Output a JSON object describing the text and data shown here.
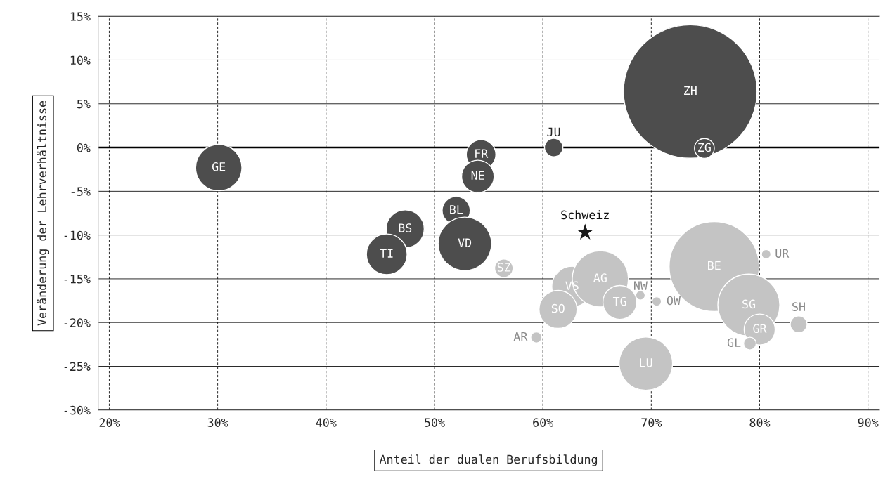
{
  "chart_data": {
    "type": "bubble",
    "xlabel": "Anteil der dualen Berufsbildung",
    "ylabel": "Veränderung der Lehrverhältnisse",
    "xlim": [
      19,
      91
    ],
    "ylim": [
      -30,
      15
    ],
    "xticks": [
      {
        "value": 20,
        "label": "20%"
      },
      {
        "value": 30,
        "label": "30%"
      },
      {
        "value": 40,
        "label": "40%"
      },
      {
        "value": 50,
        "label": "50%"
      },
      {
        "value": 60,
        "label": "60%"
      },
      {
        "value": 70,
        "label": "70%"
      },
      {
        "value": 80,
        "label": "80%"
      },
      {
        "value": 90,
        "label": "90%"
      }
    ],
    "yticks": [
      {
        "value": -30,
        "label": "-30%"
      },
      {
        "value": -25,
        "label": "-25%"
      },
      {
        "value": -20,
        "label": "-20%"
      },
      {
        "value": -15,
        "label": "-15%"
      },
      {
        "value": -10,
        "label": "-10%"
      },
      {
        "value": -5,
        "label": "-5%"
      },
      {
        "value": 0,
        "label": "0%"
      },
      {
        "value": 5,
        "label": "5%"
      },
      {
        "value": 10,
        "label": "10%"
      },
      {
        "value": 15,
        "label": "15%"
      }
    ],
    "grid": true,
    "ref_lines": [
      {
        "axis": "y",
        "value": 0,
        "color": "#000000"
      }
    ],
    "series": [
      {
        "color": "#4d4d4d",
        "x": [
          30.1,
          54.3,
          54.0,
          61.0,
          73.6,
          74.9,
          52.0,
          47.3,
          45.6,
          52.8
        ],
        "values": [
          -2.3,
          -0.8,
          -3.3,
          0.0,
          6.4,
          -0.1,
          -7.2,
          -9.3,
          -12.2,
          -11.0
        ],
        "sizes": [
          0.12,
          0.049,
          0.059,
          0.019,
          1,
          0.022,
          0.044,
          0.081,
          0.093,
          0.16
        ]
      },
      {
        "color": "#c4c4c4",
        "x": [
          56.4,
          62.7,
          65.3,
          69.0,
          70.5,
          67.1,
          61.4,
          59.4,
          69.5,
          75.8,
          80.6,
          79.0,
          80.0,
          83.6,
          79.1
        ],
        "values": [
          -13.8,
          -15.9,
          -15.0,
          -16.9,
          -17.6,
          -17.7,
          -18.5,
          -21.7,
          -24.7,
          -13.6,
          -12.2,
          -18.0,
          -20.8,
          -20.2,
          -22.4
        ],
        "sizes": [
          0.019,
          0.093,
          0.177,
          0.005,
          0.005,
          0.064,
          0.081,
          0.007,
          0.16,
          0.454,
          0.005,
          0.215,
          0.054,
          0.016,
          0.009
        ]
      },
      {
        "type": "scatter",
        "marker": "star",
        "color": "#1a1a1a",
        "x": [
          63.9
        ],
        "values": [
          -9.7
        ]
      }
    ],
    "annotations": [
      {
        "text": "GE",
        "x": 30.1,
        "y": -2.3
      },
      {
        "text": "FR",
        "x": 54.3,
        "y": -0.8
      },
      {
        "text": "NE",
        "x": 54.0,
        "y": -3.3
      },
      {
        "text": "JU",
        "x": 61.0,
        "y": 0.0
      },
      {
        "text": "ZH",
        "x": 73.6,
        "y": 6.4
      },
      {
        "text": "ZG",
        "x": 74.9,
        "y": -0.1
      },
      {
        "text": "BL",
        "x": 52.0,
        "y": -7.2
      },
      {
        "text": "BS",
        "x": 47.3,
        "y": -9.3
      },
      {
        "text": "TI",
        "x": 45.6,
        "y": -12.2
      },
      {
        "text": "VD",
        "x": 52.8,
        "y": -11.0
      },
      {
        "text": "SZ",
        "x": 56.4,
        "y": -13.8
      },
      {
        "text": "VS",
        "x": 62.7,
        "y": -15.9
      },
      {
        "text": "AG",
        "x": 65.3,
        "y": -15.0
      },
      {
        "text": "NW",
        "x": 69.0,
        "y": -16.9
      },
      {
        "text": "OW",
        "x": 70.5,
        "y": -17.6
      },
      {
        "text": "TG",
        "x": 67.1,
        "y": -17.7
      },
      {
        "text": "SO",
        "x": 61.4,
        "y": -18.5
      },
      {
        "text": "AR",
        "x": 59.4,
        "y": -21.7
      },
      {
        "text": "LU",
        "x": 69.5,
        "y": -24.7
      },
      {
        "text": "BE",
        "x": 75.8,
        "y": -13.6
      },
      {
        "text": "UR",
        "x": 80.6,
        "y": -12.2
      },
      {
        "text": "SG",
        "x": 79.0,
        "y": -18.0
      },
      {
        "text": "GR",
        "x": 80.0,
        "y": -20.8
      },
      {
        "text": "SH",
        "x": 83.6,
        "y": -20.2
      },
      {
        "text": "GL",
        "x": 79.1,
        "y": -22.4
      },
      {
        "text": "Schweiz",
        "x": 63.9,
        "y": -9.7
      }
    ]
  }
}
